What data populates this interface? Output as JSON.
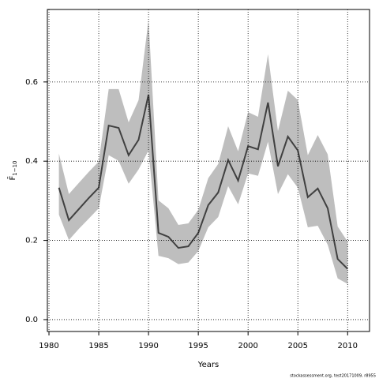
{
  "chart_data": {
    "type": "line-band",
    "x_label": "Years",
    "y_label": "F̄",
    "y_label_sub": "1−10",
    "footer": "stockassessment.org, test20171009, r8955",
    "x": [
      1981,
      1982,
      1983,
      1984,
      1985,
      1986,
      1987,
      1988,
      1989,
      1990,
      1991,
      1992,
      1993,
      1994,
      1995,
      1996,
      1997,
      1998,
      1999,
      2000,
      2001,
      2002,
      2003,
      2004,
      2005,
      2006,
      2007,
      2008,
      2009,
      2010
    ],
    "values": [
      0.333,
      0.251,
      0.279,
      0.307,
      0.333,
      0.49,
      0.484,
      0.415,
      0.454,
      0.568,
      0.219,
      0.209,
      0.181,
      0.185,
      0.219,
      0.289,
      0.321,
      0.403,
      0.351,
      0.438,
      0.43,
      0.548,
      0.387,
      0.462,
      0.427,
      0.309,
      0.331,
      0.281,
      0.153,
      0.128
    ],
    "upper": [
      0.419,
      0.317,
      0.345,
      0.373,
      0.399,
      0.582,
      0.582,
      0.498,
      0.554,
      0.757,
      0.301,
      0.281,
      0.239,
      0.243,
      0.277,
      0.357,
      0.393,
      0.488,
      0.425,
      0.524,
      0.512,
      0.67,
      0.476,
      0.578,
      0.554,
      0.415,
      0.466,
      0.417,
      0.235,
      0.197
    ],
    "lower": [
      0.265,
      0.201,
      0.229,
      0.255,
      0.281,
      0.415,
      0.401,
      0.343,
      0.379,
      0.427,
      0.161,
      0.155,
      0.14,
      0.144,
      0.173,
      0.233,
      0.259,
      0.337,
      0.291,
      0.369,
      0.363,
      0.449,
      0.317,
      0.367,
      0.333,
      0.233,
      0.237,
      0.189,
      0.104,
      0.09
    ],
    "line_color": "#404040",
    "band_color": "#bebebe",
    "xlim": [
      1979.84,
      2012.2
    ],
    "ylim": [
      -0.03,
      0.783
    ],
    "xticks": [
      1980,
      1985,
      1990,
      1995,
      2000,
      2005,
      2010
    ],
    "yticks": [
      {
        "value": 0,
        "label": "0.0"
      },
      0.2,
      0.4,
      0.6
    ],
    "grid": true
  }
}
